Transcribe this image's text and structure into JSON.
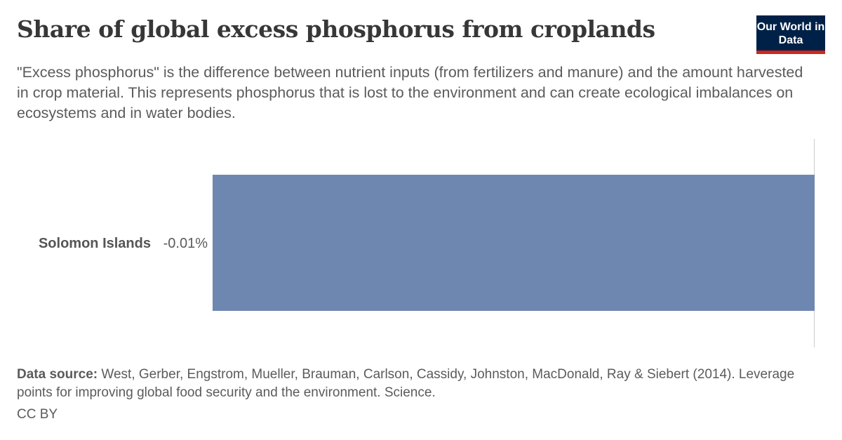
{
  "header": {
    "title": "Share of global excess phosphorus from croplands",
    "subtitle": "\"Excess phosphorus\" is the difference between nutrient inputs (from fertilizers and manure) and the amount harvested in crop material. This represents phosphorus that is lost to the environment and can create ecological imbalances on ecosystems and in water bodies.",
    "logo": "Our World in Data"
  },
  "chart_data": {
    "type": "bar",
    "orientation": "horizontal",
    "categories": [
      "Solomon Islands"
    ],
    "values": [
      -0.01
    ],
    "value_labels": [
      "-0.01%"
    ],
    "unit": "%",
    "bar_color": "#6e87b0",
    "xlim": [
      -0.01,
      0
    ]
  },
  "footer": {
    "source_label": "Data source:",
    "source_text": "West, Gerber, Engstrom, Mueller, Brauman, Carlson, Cassidy, Johnston, MacDonald, Ray & Siebert (2014). Leverage points for improving global food security and the environment. Science.",
    "license": "CC BY"
  }
}
